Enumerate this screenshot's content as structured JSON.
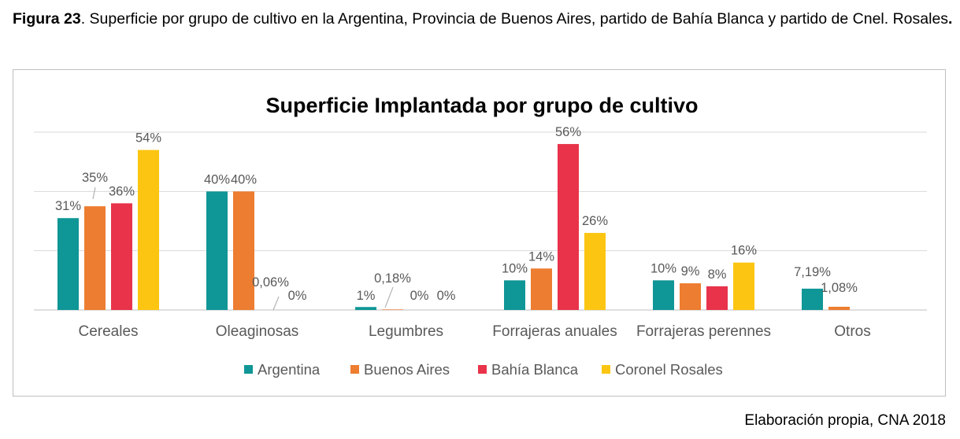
{
  "caption": {
    "figure_label": "Figura 23",
    "text": ". Superficie por grupo de cultivo en la Argentina, Provincia de Buenos Aires, partido de Bahía Blanca y partido de Cnel. Rosales",
    "end_mark": "."
  },
  "source": "Elaboración propia, CNA 2018",
  "colors": {
    "Argentina": "#0f9696",
    "Buenos Aires": "#ed7d31",
    "Bahía Blanca": "#e8334a",
    "Coronel Rosales": "#fcc512",
    "grid": "#d9d9d9",
    "text": "#595959"
  },
  "chart_data": {
    "type": "bar",
    "title": "Superficie Implantada por grupo de cultivo",
    "xlabel": "",
    "ylabel": "",
    "ylim": [
      0,
      60
    ],
    "grid": true,
    "legend_position": "bottom",
    "categories": [
      "Cereales",
      "Oleaginosas",
      "Legumbres",
      "Forrajeras anuales",
      "Forrajeras perennes",
      "Otros"
    ],
    "series": [
      {
        "name": "Argentina",
        "values": [
          31,
          40,
          1,
          10,
          10,
          7.19
        ],
        "labels": [
          "31%",
          "40%",
          "1%",
          "10%",
          "10%",
          "7,19%"
        ]
      },
      {
        "name": "Buenos Aires",
        "values": [
          35,
          40,
          0.18,
          14,
          9,
          1.08
        ],
        "labels": [
          "35%",
          "40%",
          "0,18%",
          "14%",
          "9%",
          "1,08%"
        ]
      },
      {
        "name": "Bahía Blanca",
        "values": [
          36,
          0.06,
          0,
          56,
          8,
          0
        ],
        "labels": [
          "36%",
          "0,06%",
          "0%",
          "56%",
          "8%",
          ""
        ]
      },
      {
        "name": "Coronel Rosales",
        "values": [
          54,
          0,
          0,
          26,
          16,
          0
        ],
        "labels": [
          "54%",
          "0%",
          "0%",
          "26%",
          "16%",
          ""
        ]
      }
    ]
  }
}
